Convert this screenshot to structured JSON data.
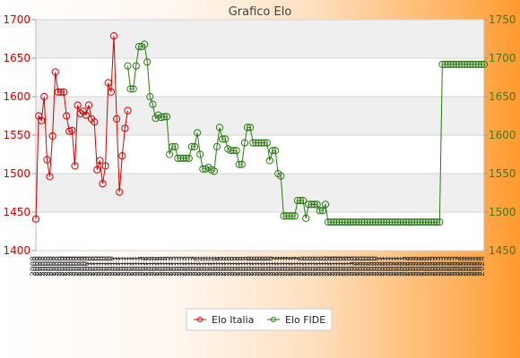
{
  "chart_data": {
    "type": "line",
    "title": "Grafico Elo",
    "x_tick_labels": [
      "2008",
      "2009",
      "2010",
      "2011",
      "2012",
      "2013",
      "2014",
      "2015",
      "2016",
      "2017",
      "2018",
      "2019",
      "2020",
      "2021",
      "2022",
      "2023",
      "2024"
    ],
    "y_left": {
      "range": [
        1400,
        1700
      ],
      "ticks": [
        1400,
        1450,
        1500,
        1550,
        1600,
        1650,
        1700
      ]
    },
    "y_right": {
      "range": [
        1450,
        1750
      ],
      "ticks": [
        1450,
        1500,
        1550,
        1600,
        1650,
        1700,
        1750
      ]
    },
    "grid": true,
    "legend_position": "bottom",
    "series": [
      {
        "name": "Elo Italia",
        "axis": "left",
        "color": "#d40000",
        "values": [
          1441,
          1575,
          1569,
          1600,
          1518,
          1496,
          1549,
          1632,
          1606,
          1606,
          1606,
          1575,
          1555,
          1556,
          1510,
          1589,
          1578,
          1581,
          1576,
          1589,
          1571,
          1567,
          1505,
          1517,
          1487,
          1510,
          1618,
          1606,
          1679,
          1571,
          1476,
          1523,
          1559,
          1582
        ]
      },
      {
        "name": "Elo FIDE",
        "axis": "right",
        "color": "#2a7a12",
        "x_start": 33,
        "values": [
          1690,
          1660,
          1660,
          1690,
          1715,
          1715,
          1718,
          1695,
          1650,
          1640,
          1622,
          1626,
          1623,
          1624,
          1624,
          1575,
          1585,
          1585,
          1570,
          1570,
          1570,
          1570,
          1570,
          1585,
          1585,
          1603,
          1575,
          1556,
          1556,
          1558,
          1555,
          1553,
          1585,
          1610,
          1595,
          1595,
          1582,
          1580,
          1580,
          1580,
          1562,
          1562,
          1590,
          1610,
          1610,
          1590,
          1590,
          1590,
          1590,
          1590,
          1590,
          1567,
          1580,
          1580,
          1550,
          1547,
          1495,
          1495,
          1495,
          1495,
          1495,
          1515,
          1515,
          1515,
          1492,
          1510,
          1510,
          1510,
          1510,
          1502,
          1502,
          1510,
          1487,
          1487,
          1487,
          1487,
          1487,
          1487,
          1487,
          1487,
          1487,
          1487,
          1487,
          1487,
          1487,
          1487,
          1487,
          1487,
          1487,
          1487,
          1487,
          1487,
          1487,
          1487,
          1487,
          1487,
          1487,
          1487,
          1487,
          1487,
          1487,
          1487,
          1487,
          1487,
          1487,
          1487,
          1487,
          1487,
          1487,
          1487,
          1487,
          1487,
          1487,
          1692,
          1692,
          1692,
          1692,
          1692,
          1692,
          1692,
          1692,
          1692,
          1692,
          1692,
          1692,
          1692,
          1692,
          1692,
          1692
        ]
      }
    ]
  }
}
